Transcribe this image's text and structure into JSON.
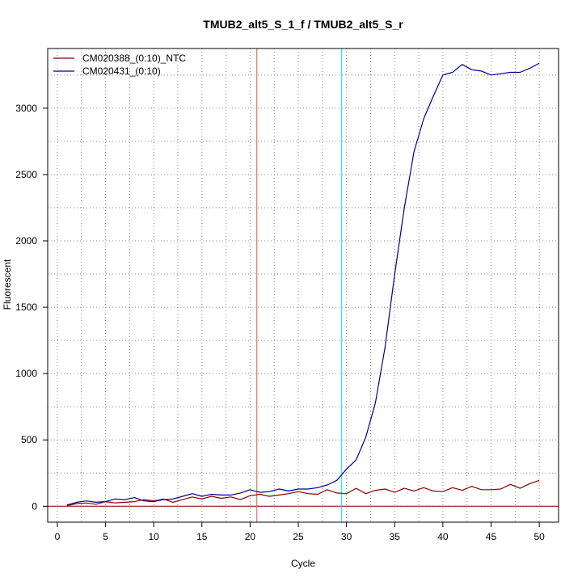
{
  "chart_data": {
    "type": "line",
    "title": "TMUB2_alt5_S_1_f / TMUB2_alt5_S_r",
    "xlabel": "Cycle",
    "ylabel": "Fluorescent",
    "xlim": [
      -1,
      52
    ],
    "ylim": [
      -120,
      3450
    ],
    "xticks": [
      0,
      5,
      10,
      15,
      20,
      25,
      30,
      35,
      40,
      45,
      50
    ],
    "yticks": [
      0,
      500,
      1000,
      1500,
      2000,
      2500,
      3000
    ],
    "grid": true,
    "legend": "top-left",
    "x": [
      1,
      2,
      3,
      4,
      5,
      6,
      7,
      8,
      9,
      10,
      11,
      12,
      13,
      14,
      15,
      16,
      17,
      18,
      19,
      20,
      21,
      22,
      23,
      24,
      25,
      26,
      27,
      28,
      29,
      30,
      31,
      32,
      33,
      34,
      35,
      36,
      37,
      38,
      39,
      40,
      41,
      42,
      43,
      44,
      45,
      46,
      47,
      48,
      49,
      50
    ],
    "series": [
      {
        "name": "CM020388_(0:10)_NTC",
        "color": "#8b0000",
        "values": [
          5,
          20,
          25,
          15,
          35,
          25,
          30,
          35,
          50,
          40,
          55,
          30,
          50,
          70,
          55,
          75,
          60,
          70,
          50,
          80,
          90,
          75,
          85,
          95,
          110,
          95,
          90,
          125,
          100,
          95,
          135,
          95,
          120,
          130,
          105,
          135,
          115,
          140,
          115,
          110,
          140,
          120,
          150,
          125,
          125,
          130,
          165,
          135,
          170,
          195
        ]
      },
      {
        "name": "CM020431_(0:10)",
        "color": "#00008b",
        "values": [
          10,
          30,
          40,
          30,
          35,
          55,
          50,
          65,
          40,
          35,
          50,
          55,
          75,
          95,
          75,
          90,
          85,
          85,
          100,
          125,
          105,
          110,
          130,
          115,
          130,
          130,
          140,
          160,
          195,
          280,
          350,
          520,
          780,
          1200,
          1750,
          2250,
          2670,
          2920,
          3090,
          3250,
          3270,
          3330,
          3290,
          3280,
          3250,
          3260,
          3270,
          3270,
          3300,
          3340
        ]
      }
    ],
    "thresholds": [
      {
        "x": 20.7,
        "color": "#cd5c5c"
      },
      {
        "x": 29.5,
        "color": "#00e5ee"
      }
    ],
    "baseline": {
      "y": 0,
      "color": "#8b0000"
    }
  }
}
